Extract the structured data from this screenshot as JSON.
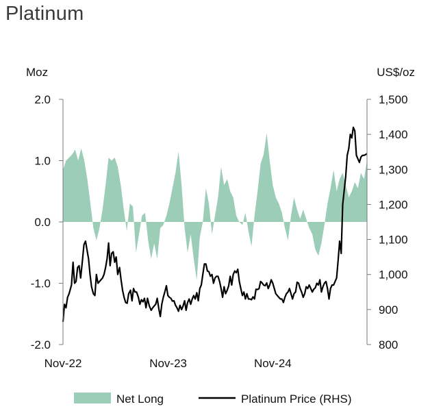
{
  "title": "Platinum",
  "chart_data": {
    "type": "area+line",
    "title": "Platinum",
    "left_axis": {
      "unit": "Moz",
      "min": -2.0,
      "max": 2.0,
      "ticks": [
        "2.0",
        "1.0",
        "0.0",
        "-1.0",
        "-2.0"
      ],
      "tick_values": [
        2,
        1,
        0,
        -1,
        -2
      ]
    },
    "right_axis": {
      "unit": "US$/oz",
      "min": 800,
      "max": 1500,
      "ticks": [
        "1,500",
        "1,400",
        "1,300",
        "1,200",
        "1,100",
        "1,000",
        "900",
        "800"
      ],
      "tick_values": [
        1500,
        1400,
        1300,
        1200,
        1100,
        1000,
        900,
        800
      ]
    },
    "x_axis": {
      "start": 0,
      "end": 1,
      "ticks": [
        {
          "label": "Nov-22",
          "t": 0.0
        },
        {
          "label": "Nov-23",
          "t": 0.346
        },
        {
          "label": "Nov-24",
          "t": 0.69
        }
      ]
    },
    "series": [
      {
        "name": "Net Long",
        "kind": "area",
        "color": "#9ccdb8",
        "axis": "left",
        "points": [
          [
            0.0,
            0.85
          ],
          [
            0.01,
            1.0
          ],
          [
            0.02,
            1.05
          ],
          [
            0.03,
            1.1
          ],
          [
            0.04,
            1.18
          ],
          [
            0.05,
            1.0
          ],
          [
            0.06,
            1.2
          ],
          [
            0.07,
            1.0
          ],
          [
            0.08,
            0.7
          ],
          [
            0.09,
            0.3
          ],
          [
            0.1,
            -0.1
          ],
          [
            0.11,
            -0.3
          ],
          [
            0.12,
            -0.1
          ],
          [
            0.13,
            0.2
          ],
          [
            0.14,
            0.6
          ],
          [
            0.15,
            1.05
          ],
          [
            0.16,
            1.0
          ],
          [
            0.17,
            1.05
          ],
          [
            0.18,
            0.9
          ],
          [
            0.19,
            0.6
          ],
          [
            0.2,
            0.2
          ],
          [
            0.21,
            -0.15
          ],
          [
            0.22,
            0.3
          ],
          [
            0.23,
            0.25
          ],
          [
            0.24,
            -0.5
          ],
          [
            0.25,
            -0.2
          ],
          [
            0.26,
            0.1
          ],
          [
            0.27,
            0.15
          ],
          [
            0.28,
            -0.3
          ],
          [
            0.29,
            -0.6
          ],
          [
            0.3,
            -0.35
          ],
          [
            0.31,
            -0.6
          ],
          [
            0.32,
            -0.1
          ],
          [
            0.33,
            -0.05
          ],
          [
            0.34,
            0.1
          ],
          [
            0.35,
            0.3
          ],
          [
            0.36,
            0.55
          ],
          [
            0.37,
            0.8
          ],
          [
            0.38,
            1.15
          ],
          [
            0.39,
            0.6
          ],
          [
            0.4,
            -0.1
          ],
          [
            0.41,
            -0.5
          ],
          [
            0.42,
            -0.2
          ],
          [
            0.43,
            -0.6
          ],
          [
            0.44,
            -0.95
          ],
          [
            0.45,
            -0.25
          ],
          [
            0.46,
            0.0
          ],
          [
            0.47,
            0.55
          ],
          [
            0.48,
            0.3
          ],
          [
            0.49,
            -0.2
          ],
          [
            0.5,
            0.1
          ],
          [
            0.51,
            0.4
          ],
          [
            0.52,
            0.9
          ],
          [
            0.53,
            0.6
          ],
          [
            0.54,
            0.7
          ],
          [
            0.55,
            0.5
          ],
          [
            0.56,
            0.4
          ],
          [
            0.57,
            0.1
          ],
          [
            0.58,
            0.0
          ],
          [
            0.59,
            -0.05
          ],
          [
            0.6,
            0.15
          ],
          [
            0.61,
            -0.15
          ],
          [
            0.62,
            -0.4
          ],
          [
            0.63,
            0.1
          ],
          [
            0.64,
            0.5
          ],
          [
            0.65,
            0.95
          ],
          [
            0.66,
            1.1
          ],
          [
            0.67,
            1.45
          ],
          [
            0.68,
            1.0
          ],
          [
            0.69,
            0.6
          ],
          [
            0.7,
            0.4
          ],
          [
            0.71,
            0.3
          ],
          [
            0.72,
            0.15
          ],
          [
            0.73,
            -0.1
          ],
          [
            0.74,
            -0.3
          ],
          [
            0.75,
            0.1
          ],
          [
            0.76,
            0.4
          ],
          [
            0.77,
            0.2
          ],
          [
            0.78,
            0.05
          ],
          [
            0.79,
            0.2
          ],
          [
            0.8,
            0.05
          ],
          [
            0.81,
            -0.1
          ],
          [
            0.82,
            -0.2
          ],
          [
            0.83,
            -0.45
          ],
          [
            0.84,
            -0.55
          ],
          [
            0.85,
            -0.35
          ],
          [
            0.86,
            -0.05
          ],
          [
            0.87,
            0.3
          ],
          [
            0.88,
            0.55
          ],
          [
            0.89,
            0.85
          ],
          [
            0.9,
            0.5
          ],
          [
            0.91,
            0.7
          ],
          [
            0.92,
            0.8
          ],
          [
            0.93,
            0.6
          ],
          [
            0.94,
            0.4
          ],
          [
            0.95,
            0.5
          ],
          [
            0.96,
            0.65
          ],
          [
            0.97,
            0.55
          ],
          [
            0.98,
            0.8
          ],
          [
            0.99,
            0.7
          ],
          [
            1.0,
            1.0
          ]
        ]
      },
      {
        "name": "Platinum Price (RHS)",
        "kind": "line",
        "color": "#000000",
        "axis": "right",
        "points": [
          [
            0.0,
            865
          ],
          [
            0.005,
            915
          ],
          [
            0.01,
            905
          ],
          [
            0.015,
            935
          ],
          [
            0.02,
            945
          ],
          [
            0.028,
            970
          ],
          [
            0.033,
            1035
          ],
          [
            0.038,
            975
          ],
          [
            0.043,
            980
          ],
          [
            0.048,
            1020
          ],
          [
            0.053,
            1025
          ],
          [
            0.058,
            990
          ],
          [
            0.064,
            1040
          ],
          [
            0.069,
            1085
          ],
          [
            0.074,
            1095
          ],
          [
            0.079,
            1070
          ],
          [
            0.084,
            1045
          ],
          [
            0.089,
            1000
          ],
          [
            0.094,
            965
          ],
          [
            0.1,
            945
          ],
          [
            0.105,
            940
          ],
          [
            0.11,
            1000
          ],
          [
            0.115,
            975
          ],
          [
            0.12,
            980
          ],
          [
            0.125,
            985
          ],
          [
            0.13,
            990
          ],
          [
            0.135,
            1000
          ],
          [
            0.14,
            1020
          ],
          [
            0.145,
            1045
          ],
          [
            0.15,
            1090
          ],
          [
            0.155,
            1025
          ],
          [
            0.16,
            1060
          ],
          [
            0.165,
            1065
          ],
          [
            0.17,
            1035
          ],
          [
            0.175,
            1050
          ],
          [
            0.18,
            1000
          ],
          [
            0.186,
            1020
          ],
          [
            0.191,
            985
          ],
          [
            0.196,
            955
          ],
          [
            0.201,
            935
          ],
          [
            0.206,
            920
          ],
          [
            0.211,
            918
          ],
          [
            0.216,
            945
          ],
          [
            0.222,
            955
          ],
          [
            0.227,
            925
          ],
          [
            0.232,
            960
          ],
          [
            0.237,
            950
          ],
          [
            0.242,
            950
          ],
          [
            0.248,
            935
          ],
          [
            0.253,
            915
          ],
          [
            0.258,
            928
          ],
          [
            0.263,
            922
          ],
          [
            0.268,
            932
          ],
          [
            0.273,
            905
          ],
          [
            0.278,
            932
          ],
          [
            0.284,
            910
          ],
          [
            0.29,
            898
          ],
          [
            0.295,
            905
          ],
          [
            0.3,
            910
          ],
          [
            0.305,
            915
          ],
          [
            0.31,
            932
          ],
          [
            0.315,
            903
          ],
          [
            0.32,
            880
          ],
          [
            0.325,
            915
          ],
          [
            0.33,
            935
          ],
          [
            0.335,
            950
          ],
          [
            0.34,
            968
          ],
          [
            0.345,
            940
          ],
          [
            0.35,
            935
          ],
          [
            0.355,
            932
          ],
          [
            0.36,
            924
          ],
          [
            0.365,
            925
          ],
          [
            0.37,
            912
          ],
          [
            0.375,
            905
          ],
          [
            0.38,
            895
          ],
          [
            0.385,
            912
          ],
          [
            0.39,
            900
          ],
          [
            0.395,
            910
          ],
          [
            0.4,
            925
          ],
          [
            0.405,
            898
          ],
          [
            0.41,
            920
          ],
          [
            0.415,
            930
          ],
          [
            0.42,
            915
          ],
          [
            0.425,
            930
          ],
          [
            0.43,
            940
          ],
          [
            0.435,
            930
          ],
          [
            0.44,
            948
          ],
          [
            0.445,
            925
          ],
          [
            0.45,
            960
          ],
          [
            0.455,
            970
          ],
          [
            0.46,
            1000
          ],
          [
            0.465,
            1030
          ],
          [
            0.47,
            1030
          ],
          [
            0.475,
            1010
          ],
          [
            0.48,
            1008
          ],
          [
            0.485,
            995
          ],
          [
            0.49,
            1000
          ],
          [
            0.495,
            975
          ],
          [
            0.5,
            990
          ],
          [
            0.505,
            995
          ],
          [
            0.51,
            995
          ],
          [
            0.515,
            980
          ],
          [
            0.52,
            960
          ],
          [
            0.525,
            935
          ],
          [
            0.53,
            965
          ],
          [
            0.535,
            945
          ],
          [
            0.54,
            955
          ],
          [
            0.545,
            968
          ],
          [
            0.55,
            995
          ],
          [
            0.555,
            970
          ],
          [
            0.56,
            1000
          ],
          [
            0.565,
            1010
          ],
          [
            0.57,
            1005
          ],
          [
            0.575,
            1015
          ],
          [
            0.58,
            980
          ],
          [
            0.585,
            960
          ],
          [
            0.59,
            940
          ],
          [
            0.595,
            950
          ],
          [
            0.6,
            930
          ],
          [
            0.605,
            945
          ],
          [
            0.61,
            930
          ],
          [
            0.615,
            930
          ],
          [
            0.62,
            928
          ],
          [
            0.625,
            936
          ],
          [
            0.63,
            930
          ],
          [
            0.635,
            958
          ],
          [
            0.64,
            957
          ],
          [
            0.645,
            960
          ],
          [
            0.65,
            980
          ],
          [
            0.655,
            976
          ],
          [
            0.66,
            970
          ],
          [
            0.665,
            968
          ],
          [
            0.67,
            976
          ],
          [
            0.675,
            960
          ],
          [
            0.68,
            970
          ],
          [
            0.685,
            985
          ],
          [
            0.69,
            975
          ],
          [
            0.695,
            960
          ],
          [
            0.7,
            945
          ],
          [
            0.705,
            940
          ],
          [
            0.71,
            935
          ],
          [
            0.715,
            930
          ],
          [
            0.72,
            930
          ],
          [
            0.725,
            920
          ],
          [
            0.73,
            935
          ],
          [
            0.735,
            945
          ],
          [
            0.74,
            950
          ],
          [
            0.745,
            960
          ],
          [
            0.75,
            945
          ],
          [
            0.755,
            930
          ],
          [
            0.76,
            945
          ],
          [
            0.765,
            950
          ],
          [
            0.77,
            978
          ],
          [
            0.775,
            975
          ],
          [
            0.78,
            960
          ],
          [
            0.785,
            950
          ],
          [
            0.79,
            935
          ],
          [
            0.795,
            945
          ],
          [
            0.8,
            965
          ],
          [
            0.805,
            960
          ],
          [
            0.81,
            970
          ],
          [
            0.815,
            960
          ],
          [
            0.82,
            950
          ],
          [
            0.825,
            958
          ],
          [
            0.83,
            962
          ],
          [
            0.835,
            975
          ],
          [
            0.84,
            970
          ],
          [
            0.845,
            985
          ],
          [
            0.85,
            950
          ],
          [
            0.855,
            965
          ],
          [
            0.86,
            975
          ],
          [
            0.865,
            980
          ],
          [
            0.87,
            960
          ],
          [
            0.875,
            930
          ],
          [
            0.88,
            960
          ],
          [
            0.885,
            970
          ],
          [
            0.89,
            970
          ],
          [
            0.895,
            980
          ],
          [
            0.9,
            990
          ],
          [
            0.905,
            1040
          ],
          [
            0.91,
            1095
          ],
          [
            0.915,
            1060
          ],
          [
            0.92,
            1200
          ],
          [
            0.925,
            1240
          ],
          [
            0.93,
            1280
          ],
          [
            0.935,
            1340
          ],
          [
            0.94,
            1360
          ],
          [
            0.945,
            1400
          ],
          [
            0.95,
            1390
          ],
          [
            0.955,
            1420
          ],
          [
            0.96,
            1410
          ],
          [
            0.965,
            1340
          ],
          [
            0.97,
            1330
          ],
          [
            0.975,
            1320
          ],
          [
            0.98,
            1335
          ],
          [
            0.985,
            1340
          ],
          [
            0.99,
            1340
          ],
          [
            0.995,
            1342
          ],
          [
            1.0,
            1345
          ]
        ]
      }
    ],
    "legend": {
      "placement": "bottom-center",
      "items": [
        "Net Long",
        "Platinum Price (RHS)"
      ]
    }
  }
}
